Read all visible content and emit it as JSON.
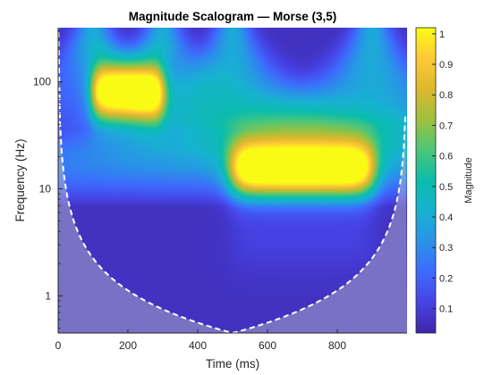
{
  "chart_data": {
    "type": "heatmap",
    "title": "Magnitude Scalogram — Morse (3,5)",
    "xlabel": "Time (ms)",
    "ylabel": "Frequency (Hz)",
    "colorbar_label": "Magnitude",
    "x_ticks": [
      0,
      200,
      400,
      600,
      800
    ],
    "y_ticks": [
      1,
      10,
      100
    ],
    "y_scale": "log",
    "xlim": [
      0,
      1000
    ],
    "ylim": [
      0.45,
      320
    ],
    "clim": [
      0.02,
      1.02
    ],
    "colorbar_ticks": [
      0.1,
      0.2,
      0.3,
      0.4,
      0.5,
      0.6,
      0.7,
      0.8,
      0.9,
      1
    ],
    "colormap": "parula",
    "cone_of_influence": {
      "style": "white dashed",
      "min_frequency_hz": 0.45,
      "at_time_ms": 500
    },
    "components": [
      {
        "t_start_ms": 100,
        "t_end_ms": 300,
        "frequency_hz": 80,
        "peak_magnitude": 0.95
      },
      {
        "t_start_ms": 500,
        "t_end_ms": 900,
        "frequency_hz": 15,
        "peak_magnitude": 0.95
      }
    ]
  }
}
